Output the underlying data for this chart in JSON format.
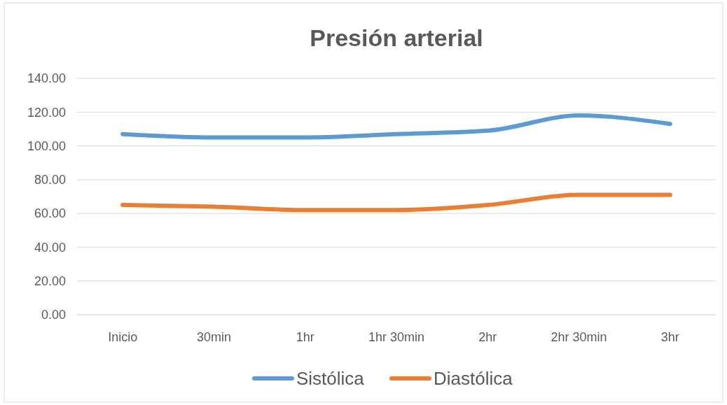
{
  "chart_data": {
    "type": "line",
    "title": "Presión arterial",
    "categories": [
      "Inicio",
      "30min",
      "1hr",
      "1hr 30min",
      "2hr",
      "2hr 30min",
      "3hr"
    ],
    "series": [
      {
        "name": "Sistólica",
        "color": "#5b9bd5",
        "values": [
          107,
          105,
          105,
          107,
          109,
          118,
          113
        ]
      },
      {
        "name": "Diastólica",
        "color": "#ed7d31",
        "values": [
          65,
          64,
          62,
          62,
          65,
          71,
          71
        ]
      }
    ],
    "ylim": [
      0,
      140
    ],
    "yticks": [
      {
        "value": 0,
        "label": "0.00"
      },
      {
        "value": 20,
        "label": "20.00"
      },
      {
        "value": 40,
        "label": "40.00"
      },
      {
        "value": 60,
        "label": "60.00"
      },
      {
        "value": 80,
        "label": "80.00"
      },
      {
        "value": 100,
        "label": "100.00"
      },
      {
        "value": 120,
        "label": "120.00"
      },
      {
        "value": 140,
        "label": "140.00"
      }
    ],
    "grid": "y",
    "legend": "bottom",
    "marker": "none",
    "line_style": "solid"
  }
}
